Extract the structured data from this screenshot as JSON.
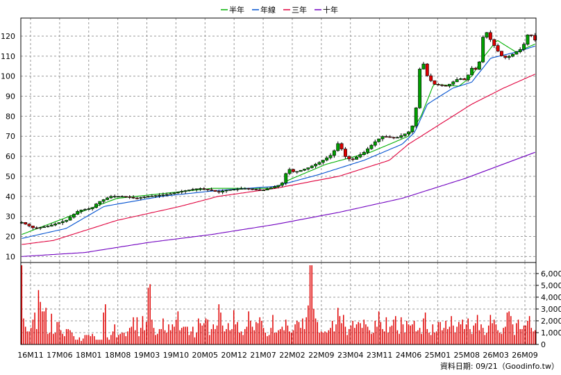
{
  "chart_data": [
    {
      "type": "candlestick",
      "title": "",
      "legend": {
        "placement": "top-center",
        "items": [
          {
            "name": "半年",
            "color": "#00b000"
          },
          {
            "name": "年線",
            "color": "#0050d0"
          },
          {
            "name": "三年",
            "color": "#e0003c"
          },
          {
            "name": "十年",
            "color": "#7000c0"
          }
        ]
      },
      "x_tick_labels": [
        "16M11",
        "17M06",
        "18M01",
        "18M08",
        "19M03",
        "19M10",
        "20M05",
        "20M12",
        "21M07",
        "22M02",
        "22M09",
        "23M04",
        "23M11",
        "24M06",
        "25M01",
        "25M08",
        "26M03",
        "26M09"
      ],
      "ylim": [
        7,
        129
      ],
      "y_ticks": [
        10,
        20,
        30,
        40,
        50,
        60,
        70,
        80,
        90,
        100,
        110,
        120
      ],
      "grid": true,
      "up_color": "#00a000",
      "down_color": "#e00000",
      "ohlc_keyframes": [
        [
          0,
          27
        ],
        [
          4,
          24
        ],
        [
          8,
          25
        ],
        [
          14,
          28
        ],
        [
          18,
          33
        ],
        [
          22,
          34
        ],
        [
          24,
          37
        ],
        [
          28,
          40
        ],
        [
          32,
          40
        ],
        [
          36,
          39
        ],
        [
          40,
          40
        ],
        [
          46,
          41
        ],
        [
          52,
          43
        ],
        [
          56,
          44
        ],
        [
          60,
          43
        ],
        [
          62,
          42
        ],
        [
          64,
          43
        ],
        [
          70,
          44
        ],
        [
          76,
          43
        ],
        [
          80,
          45
        ],
        [
          82,
          46
        ],
        [
          84,
          54
        ],
        [
          86,
          52
        ],
        [
          90,
          54
        ],
        [
          94,
          57
        ],
        [
          98,
          61
        ],
        [
          100,
          67
        ],
        [
          102,
          60
        ],
        [
          104,
          58
        ],
        [
          108,
          62
        ],
        [
          112,
          68
        ],
        [
          114,
          70
        ],
        [
          118,
          69
        ],
        [
          122,
          72
        ],
        [
          124,
          77
        ],
        [
          126,
          110
        ],
        [
          128,
          100
        ],
        [
          130,
          96
        ],
        [
          134,
          95
        ],
        [
          138,
          99
        ],
        [
          140,
          98
        ],
        [
          142,
          104
        ],
        [
          144,
          103
        ],
        [
          146,
          124
        ],
        [
          148,
          118
        ],
        [
          150,
          113
        ],
        [
          152,
          109
        ],
        [
          154,
          110
        ],
        [
          158,
          114
        ],
        [
          160,
          122
        ],
        [
          162,
          118
        ]
      ],
      "ma_keyframes": {
        "半年": [
          [
            0,
            21
          ],
          [
            20,
            33
          ],
          [
            30,
            39
          ],
          [
            60,
            44
          ],
          [
            80,
            44
          ],
          [
            84,
            48
          ],
          [
            96,
            56
          ],
          [
            110,
            62
          ],
          [
            122,
            70
          ],
          [
            126,
            80
          ],
          [
            130,
            96
          ],
          [
            138,
            95
          ],
          [
            142,
            100
          ],
          [
            146,
            110
          ],
          [
            150,
            118
          ],
          [
            156,
            112
          ],
          [
            162,
            116
          ]
        ],
        "年線": [
          [
            0,
            19
          ],
          [
            14,
            24
          ],
          [
            26,
            35
          ],
          [
            44,
            40
          ],
          [
            62,
            43
          ],
          [
            80,
            45
          ],
          [
            94,
            51
          ],
          [
            108,
            58
          ],
          [
            120,
            66
          ],
          [
            124,
            72
          ],
          [
            128,
            86
          ],
          [
            136,
            94
          ],
          [
            142,
            97
          ],
          [
            148,
            109
          ],
          [
            156,
            112
          ],
          [
            162,
            115
          ]
        ],
        "三年": [
          [
            0,
            16
          ],
          [
            10,
            18
          ],
          [
            30,
            28
          ],
          [
            50,
            35
          ],
          [
            62,
            40
          ],
          [
            80,
            44
          ],
          [
            100,
            50
          ],
          [
            116,
            58
          ],
          [
            122,
            66
          ],
          [
            132,
            76
          ],
          [
            142,
            86
          ],
          [
            152,
            94
          ],
          [
            162,
            101
          ]
        ],
        "十年": [
          [
            0,
            10
          ],
          [
            20,
            12
          ],
          [
            40,
            17
          ],
          [
            60,
            21
          ],
          [
            80,
            26
          ],
          [
            100,
            32
          ],
          [
            120,
            39
          ],
          [
            140,
            49
          ],
          [
            162,
            62
          ]
        ]
      },
      "volume_axis": {
        "ylim": [
          0,
          6700
        ],
        "ticks": [
          1000,
          2000,
          3000,
          4000,
          5000,
          6000
        ],
        "tick_labels": [
          "1,000",
          "2,000",
          "3,000",
          "4,000",
          "5,000",
          "6,000"
        ],
        "color": "#e00000"
      },
      "volume": [
        6700,
        2200,
        1500,
        1100,
        1100,
        1400,
        2100,
        2700,
        1300,
        4600,
        3600,
        2800,
        2800,
        3100,
        900,
        1000,
        2600,
        900,
        1000,
        1900,
        1900,
        1200,
        900,
        700,
        1300,
        1300,
        1200,
        1000,
        700,
        400,
        400,
        600,
        300,
        500,
        800,
        800,
        800,
        700,
        900,
        700,
        400,
        400,
        400,
        400,
        2700,
        3400,
        600,
        400,
        800,
        1100,
        1700,
        600,
        800,
        900,
        1000,
        1000,
        700,
        1100,
        1400,
        1500,
        2300,
        1200,
        2300,
        700,
        1400,
        2400,
        1200,
        1900,
        4800,
        5100,
        2100,
        1400,
        800,
        900,
        1300,
        1300,
        2200,
        1200,
        1000,
        1700,
        1200,
        1700,
        1500,
        2100,
        2800,
        1200,
        1400,
        1500,
        1500,
        1500,
        800,
        1100,
        1500,
        600,
        1000,
        2200,
        1800,
        1600,
        1800,
        2200,
        2100,
        800,
        1300,
        1700,
        1300,
        1600,
        3400,
        2700,
        1600,
        1100,
        1300,
        1800,
        1200,
        1300,
        2900,
        1700,
        1900,
        1000,
        1100,
        800,
        1300,
        1500,
        2800,
        2000,
        1500,
        1200,
        1900,
        1800,
        2300,
        2000,
        1400,
        1000,
        700,
        800,
        1400,
        2500,
        1000,
        1000,
        1200,
        1300,
        1500,
        1200,
        2100,
        1600,
        1100,
        1000,
        1200,
        1700,
        2000,
        1900,
        1400,
        2200,
        1300,
        2300,
        3300,
        9700,
        9700,
        3000,
        2200,
        1900,
        1000,
        1100,
        1000,
        1100,
        1000,
        1200,
        1400,
        2000,
        1100,
        1700,
        3100,
        2400,
        1800,
        2500,
        1500,
        800,
        1300,
        1600,
        2000,
        1400,
        1700,
        1900,
        1800,
        1400,
        2100,
        1700,
        1500,
        1200,
        900,
        1000,
        2000,
        1500,
        2800,
        1900,
        1300,
        1100,
        2300,
        1000,
        1500,
        1600,
        2100,
        2400,
        1200,
        900,
        2300,
        1700,
        1000,
        2000,
        1700,
        1600,
        1700,
        2000,
        1100,
        1200,
        1400,
        900,
        2200,
        2700,
        1300,
        1000,
        800,
        1700,
        1000,
        1100,
        1900,
        1900,
        1200,
        1400,
        2000,
        1300,
        1500,
        2400,
        1600,
        1000,
        1500,
        1900,
        1700,
        2100,
        1300,
        1700,
        2200,
        1300,
        900,
        1600,
        1800,
        2500,
        1200,
        1700,
        1400,
        800,
        1000,
        1600,
        2500,
        1800,
        2100,
        1700,
        1200,
        1000,
        900,
        1400,
        1500,
        2700,
        2800,
        2400,
        1700,
        800,
        1800,
        2100,
        1300,
        1300,
        1600,
        1600,
        2000,
        2400,
        1400,
        1100,
        1200
      ]
    }
  ],
  "source_label": "資料日期: 09/21（Goodinfo.tw）"
}
